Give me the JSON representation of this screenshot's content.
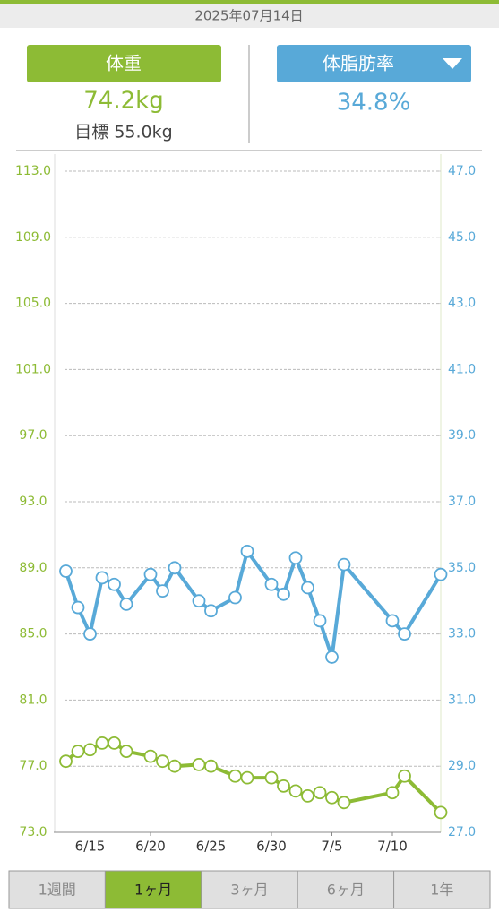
{
  "header": {
    "date": "2025年07月14日"
  },
  "current": {
    "weight": "74.2kg",
    "goal": "目標 55.0kg",
    "fat": "34.8%"
  },
  "chart_data": {
    "type": "line",
    "x": [
      "6/13",
      "6/14",
      "6/15",
      "6/16",
      "6/17",
      "6/18",
      "6/20",
      "6/21",
      "6/22",
      "6/24",
      "6/25",
      "6/27",
      "6/28",
      "6/30",
      "7/1",
      "7/2",
      "7/3",
      "7/4",
      "7/5",
      "7/6",
      "7/10",
      "7/11",
      "7/14"
    ],
    "xlim": [
      "6/12",
      "7/14"
    ],
    "xticks": [
      "6/15",
      "6/20",
      "6/25",
      "6/30",
      "7/5",
      "7/10"
    ],
    "ylim": [
      73,
      113
    ],
    "yticks": [
      {
        "value": 73,
        "label": "73.0"
      },
      {
        "value": 77,
        "label": "77.0"
      },
      {
        "value": 81,
        "label": "81.0"
      },
      {
        "value": 85,
        "label": "85.0"
      },
      {
        "value": 89,
        "label": "89.0"
      },
      {
        "value": 93,
        "label": "93.0"
      },
      {
        "value": 97,
        "label": "97.0"
      },
      {
        "value": 101,
        "label": "101.0"
      },
      {
        "value": 105,
        "label": "105.0"
      },
      {
        "value": 109,
        "label": "109.0"
      },
      {
        "value": 113,
        "label": "113.0"
      }
    ],
    "y2lim": [
      27,
      47
    ],
    "y2ticks": [
      {
        "value": 27,
        "label": "27.0"
      },
      {
        "value": 29,
        "label": "29.0"
      },
      {
        "value": 31,
        "label": "31.0"
      },
      {
        "value": 33,
        "label": "33.0"
      },
      {
        "value": 35,
        "label": "35.0"
      },
      {
        "value": 37,
        "label": "37.0"
      },
      {
        "value": 39,
        "label": "39.0"
      },
      {
        "value": 41,
        "label": "41.0"
      },
      {
        "value": 43,
        "label": "43.0"
      },
      {
        "value": 45,
        "label": "45.0"
      },
      {
        "value": 47,
        "label": "47.0"
      }
    ],
    "grid": true,
    "series": [
      {
        "name": "体重",
        "color": "#8dbb35",
        "axis": "y",
        "values": [
          77.3,
          77.9,
          78.0,
          78.4,
          78.4,
          77.9,
          77.6,
          77.3,
          77.0,
          77.1,
          77.0,
          76.4,
          76.3,
          76.3,
          75.8,
          75.5,
          75.2,
          75.4,
          75.1,
          74.8,
          75.4,
          76.4,
          74.2
        ]
      },
      {
        "name": "体脂肪率",
        "color": "#58a9d8",
        "axis": "y2",
        "values": [
          34.9,
          33.8,
          33.0,
          34.7,
          34.5,
          33.9,
          34.8,
          34.3,
          35.0,
          34.0,
          33.7,
          34.1,
          35.5,
          34.5,
          34.2,
          35.3,
          34.4,
          33.4,
          32.3,
          35.1,
          33.4,
          33.0,
          34.8
        ]
      }
    ]
  },
  "tabs": [
    "1週間",
    "1ヶ月",
    "3ヶ月",
    "6ヶ月",
    "1年"
  ],
  "selected_tab": 1
}
